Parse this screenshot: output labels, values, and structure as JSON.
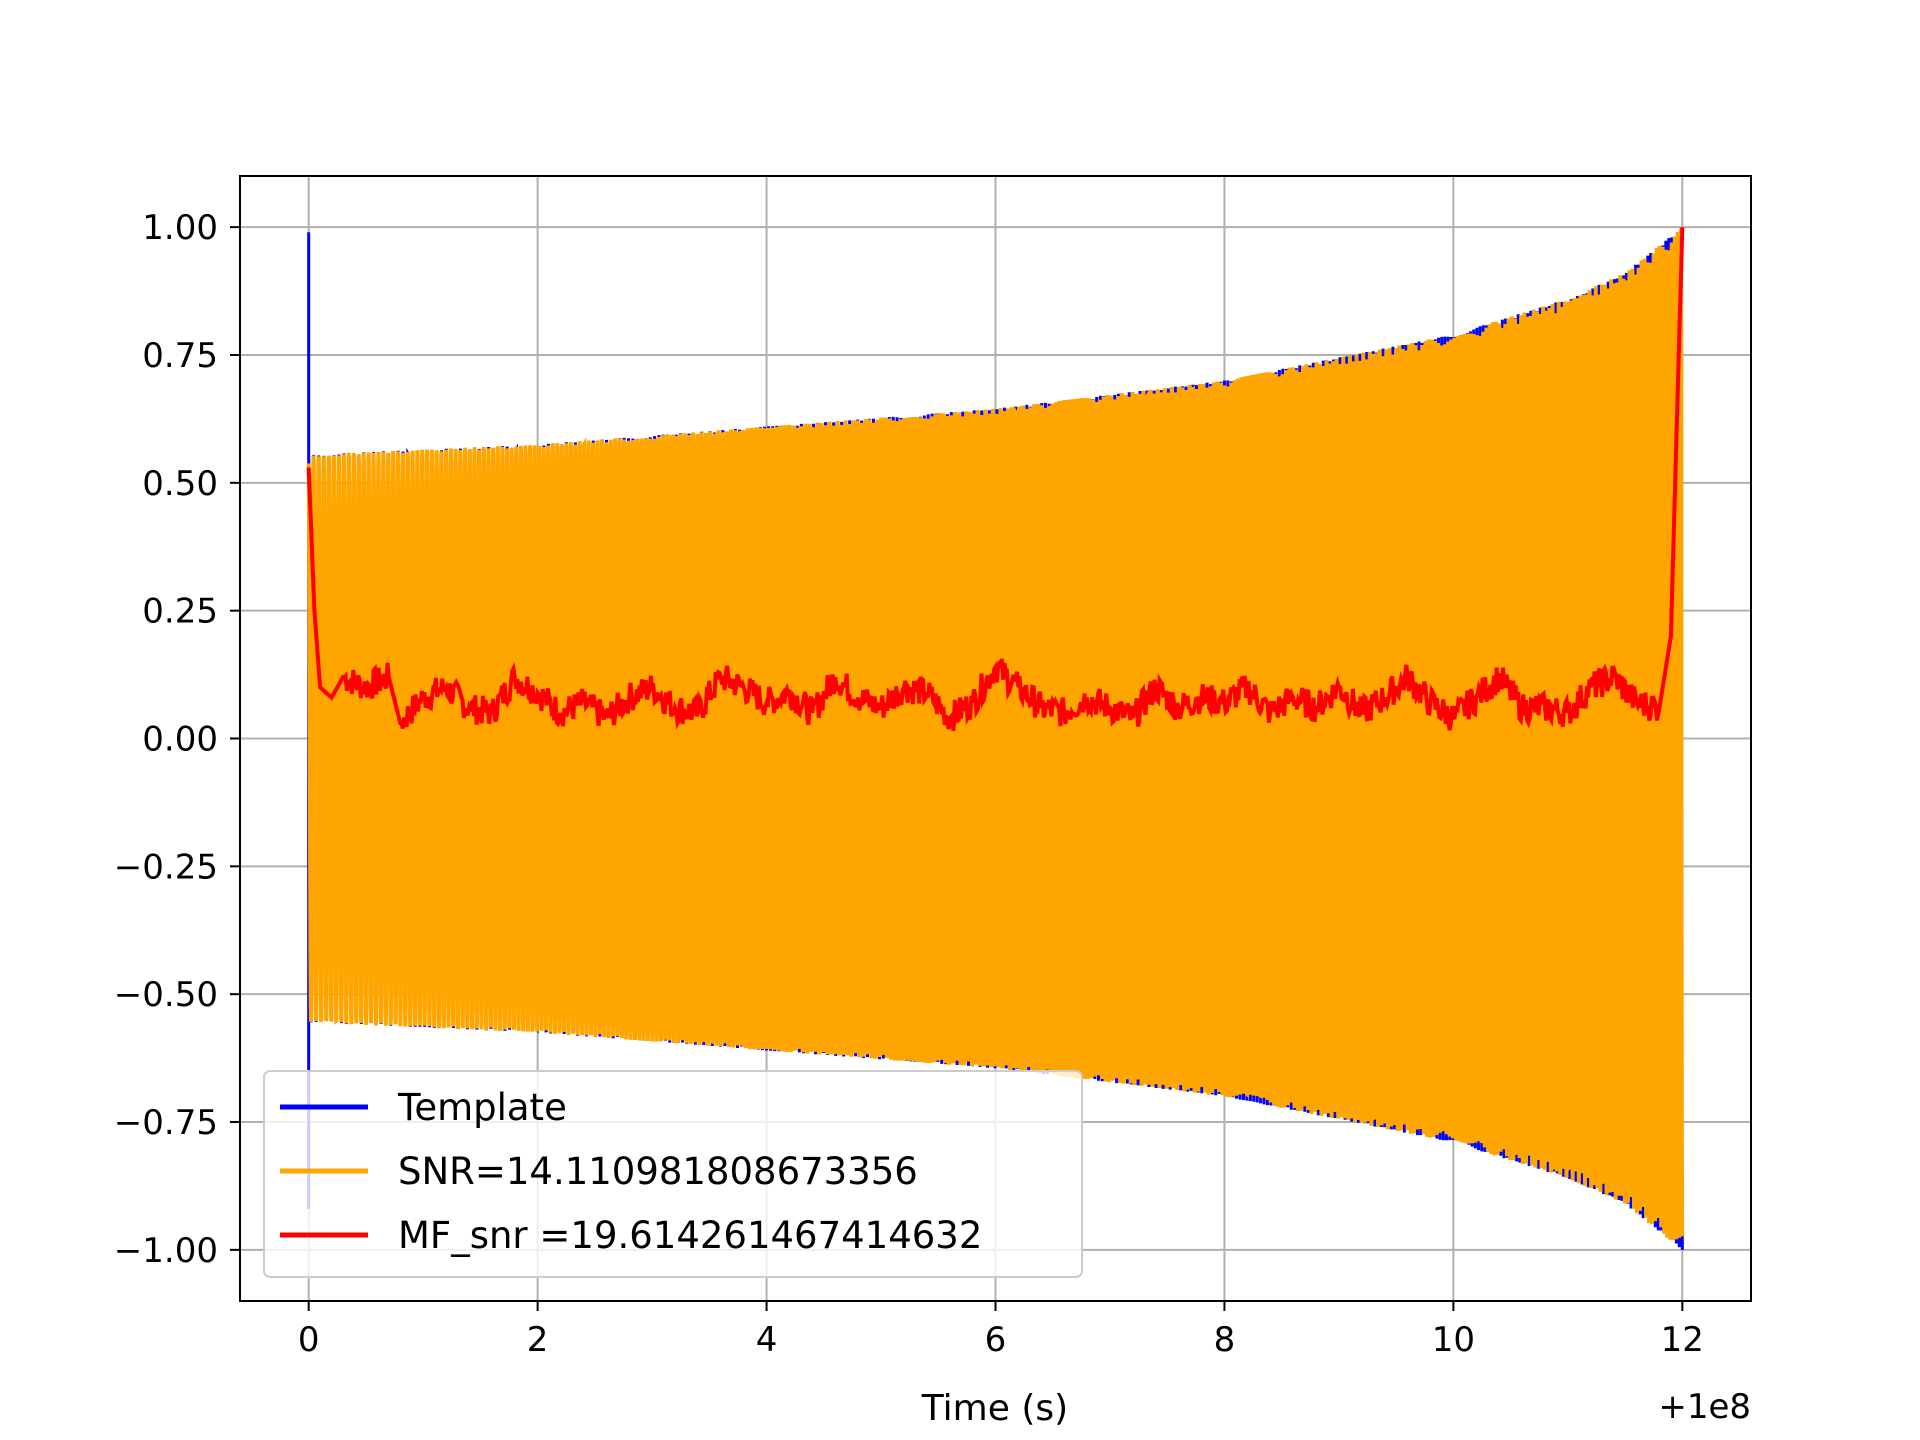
{
  "chart_data": {
    "type": "line",
    "xlabel": "Time (s)",
    "ylabel": "",
    "x_offset_label": "+1e8",
    "xlim": [
      -0.6,
      12.6
    ],
    "ylim": [
      -1.1,
      1.1
    ],
    "xticks": [
      0,
      2,
      4,
      6,
      8,
      10,
      12
    ],
    "yticks": [
      -1.0,
      -0.75,
      -0.5,
      -0.25,
      0.0,
      0.25,
      0.5,
      0.75,
      1.0
    ],
    "xtick_labels": [
      "0",
      "2",
      "4",
      "6",
      "8",
      "10",
      "12"
    ],
    "ytick_labels": [
      "−1.00",
      "−0.75",
      "−0.50",
      "−0.25",
      "0.00",
      "0.25",
      "0.50",
      "0.75",
      "1.00"
    ],
    "grid": true,
    "legend_position": "lower-left",
    "series": [
      {
        "name": "Template",
        "color": "#0000ff",
        "description_points": {
          "x": [
            0,
            0,
            0,
            0.03,
            0.06,
            0.1
          ],
          "y": [
            0.99,
            -0.92,
            0.55,
            -0.55,
            0.55,
            -0.55
          ]
        },
        "envelope": {
          "x": [
            0,
            2,
            4,
            6,
            8,
            10,
            11,
            11.5,
            12
          ],
          "y": [
            0.555,
            0.575,
            0.61,
            0.645,
            0.7,
            0.79,
            0.86,
            0.91,
            1.0
          ]
        }
      },
      {
        "name": "SNR=14.110981808673356",
        "color": "#ffa500",
        "envelope": {
          "x": [
            0,
            2,
            4,
            6,
            8,
            10,
            11,
            11.5,
            12
          ],
          "y": [
            0.555,
            0.575,
            0.61,
            0.645,
            0.7,
            0.79,
            0.86,
            0.91,
            1.0
          ]
        }
      },
      {
        "name": "MF_snr =19.614261467414632",
        "color": "#ff0000",
        "x": [
          0,
          0.05,
          0.1,
          0.2,
          0.3,
          0.5,
          0.7,
          0.8,
          1.0,
          1.2,
          1.4,
          1.6,
          1.8,
          2.0,
          2.2,
          2.4,
          2.6,
          2.8,
          3.0,
          3.2,
          3.4,
          3.6,
          3.8,
          4.0,
          4.2,
          4.4,
          4.6,
          4.8,
          5.0,
          5.2,
          5.4,
          5.6,
          5.8,
          6.0,
          6.2,
          6.4,
          6.6,
          6.8,
          7.0,
          7.2,
          7.4,
          7.6,
          7.8,
          8.0,
          8.2,
          8.4,
          8.6,
          8.8,
          9.0,
          9.2,
          9.4,
          9.6,
          9.8,
          10.0,
          10.2,
          10.4,
          10.6,
          10.8,
          11.0,
          11.2,
          11.4,
          11.6,
          11.8,
          11.9,
          11.95,
          12.0
        ],
        "y": [
          0.53,
          0.25,
          0.1,
          0.08,
          0.12,
          0.1,
          0.12,
          0.03,
          0.08,
          0.1,
          0.06,
          0.05,
          0.12,
          0.09,
          0.05,
          0.07,
          0.04,
          0.08,
          0.1,
          0.06,
          0.05,
          0.12,
          0.1,
          0.07,
          0.09,
          0.05,
          0.12,
          0.08,
          0.06,
          0.1,
          0.09,
          0.04,
          0.07,
          0.14,
          0.1,
          0.06,
          0.05,
          0.08,
          0.06,
          0.04,
          0.1,
          0.06,
          0.08,
          0.07,
          0.1,
          0.05,
          0.08,
          0.06,
          0.1,
          0.05,
          0.08,
          0.12,
          0.07,
          0.04,
          0.08,
          0.12,
          0.06,
          0.06,
          0.05,
          0.1,
          0.12,
          0.07,
          0.06,
          0.2,
          0.6,
          1.0
        ]
      }
    ]
  }
}
